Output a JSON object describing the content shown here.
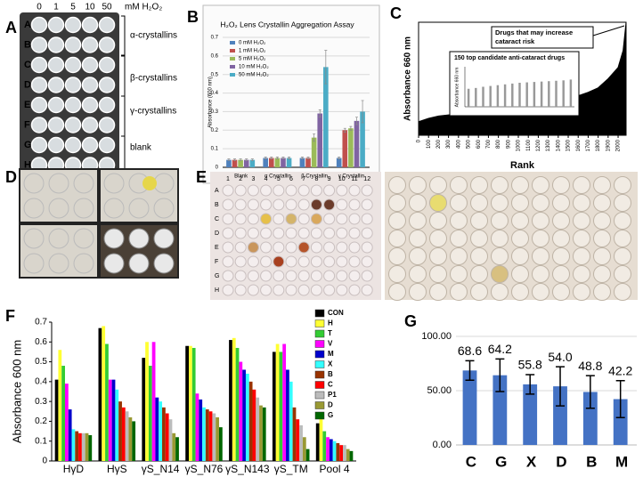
{
  "figure": {
    "panel_labels": [
      "A",
      "B",
      "C",
      "D",
      "E",
      "F",
      "G"
    ],
    "panel_a": {
      "columns": [
        "0",
        "1",
        "5",
        "10",
        "50"
      ],
      "unit": "mM H₂O₂",
      "rows": [
        "A",
        "B",
        "C",
        "D",
        "E",
        "F",
        "G",
        "H"
      ],
      "groups": [
        "α-crystallins",
        "β-crystallins",
        "γ-crystallins",
        "blank"
      ]
    },
    "panel_e": {
      "columns": [
        "1",
        "2",
        "3",
        "4",
        "5",
        "6",
        "7",
        "8",
        "9",
        "10",
        "11",
        "12"
      ],
      "rows": [
        "A",
        "B",
        "C",
        "D",
        "E",
        "F",
        "G",
        "H"
      ]
    }
  },
  "chart_data": [
    {
      "type": "bar",
      "title": "H₂O₂ Lens Crystallin Aggregation Assay",
      "ylabel": "Absorbance (600 nm)",
      "categories": [
        "Blank",
        "α Crystallin",
        "β Crystallin",
        "γ Crystallin"
      ],
      "series": [
        {
          "name": "0 mM H₂O₂",
          "color": "#4f81bd",
          "values": [
            0.04,
            0.05,
            0.05,
            0.05
          ],
          "errors": [
            0.005,
            0.005,
            0.005,
            0.005
          ]
        },
        {
          "name": "1 mM H₂O₂",
          "color": "#c0504d",
          "values": [
            0.04,
            0.05,
            0.05,
            0.2
          ],
          "errors": [
            0.005,
            0.005,
            0.005,
            0.01
          ]
        },
        {
          "name": "5 mM H₂O₂",
          "color": "#9bbb59",
          "values": [
            0.04,
            0.05,
            0.16,
            0.21
          ],
          "errors": [
            0.005,
            0.005,
            0.02,
            0.01
          ]
        },
        {
          "name": "10 mM H₂O₂",
          "color": "#8064a2",
          "values": [
            0.04,
            0.05,
            0.29,
            0.25
          ],
          "errors": [
            0.005,
            0.005,
            0.02,
            0.02
          ]
        },
        {
          "name": "50 mM H₂O₂",
          "color": "#4bacc6",
          "values": [
            0.04,
            0.05,
            0.54,
            0.3
          ],
          "errors": [
            0.005,
            0.005,
            0.09,
            0.06
          ]
        }
      ],
      "ylim": [
        0,
        0.7
      ],
      "yticks": [
        0,
        0.1,
        0.2,
        0.3,
        0.4,
        0.5,
        0.6,
        0.7
      ],
      "grid": true,
      "legend": "upper left"
    },
    {
      "type": "area",
      "ylabel": "Absorbance 660 nm",
      "xlabel": "Rank",
      "color": "#000000",
      "x": [
        0,
        100,
        200,
        300,
        400,
        500,
        600,
        700,
        800,
        900,
        1000,
        1100,
        1200,
        1300,
        1400,
        1500,
        1600,
        1700,
        1800,
        1900,
        2000,
        2050,
        2080
      ],
      "y": [
        0.12,
        0.15,
        0.17,
        0.18,
        0.19,
        0.2,
        0.21,
        0.22,
        0.23,
        0.24,
        0.25,
        0.26,
        0.27,
        0.28,
        0.3,
        0.32,
        0.35,
        0.38,
        0.42,
        0.5,
        0.6,
        0.75,
        1.0
      ],
      "xlim": [
        0,
        2080
      ],
      "ylim": [
        0,
        1
      ],
      "xticks": [
        0,
        100,
        200,
        300,
        400,
        500,
        600,
        700,
        800,
        900,
        1000,
        1100,
        1200,
        1300,
        1400,
        1500,
        1600,
        1700,
        1800,
        1900,
        2000
      ],
      "annotation": [
        "Drugs that may increase",
        "cataract risk"
      ],
      "inset": {
        "title": "150 top candidate anti-cataract drugs",
        "ylabel": "Absorbance 660 nm",
        "ylim": [
          0,
          1
        ],
        "values": [
          0.45,
          0.47,
          0.5,
          0.52,
          0.54,
          0.56,
          0.58,
          0.6,
          0.61,
          0.62,
          0.63,
          0.64,
          0.65,
          0.66,
          0.68
        ]
      }
    },
    {
      "type": "bar",
      "ylabel": "Absorbance 600 nm",
      "categories": [
        "HγD",
        "HγS",
        "γS_N14",
        "γS_N76",
        "γS_N143",
        "γS_TM",
        "Pool 4"
      ],
      "series": [
        {
          "name": "CON",
          "color": "#000000",
          "values": [
            0.41,
            0.67,
            0.52,
            0.58,
            0.61,
            0.55,
            0.19
          ]
        },
        {
          "name": "H",
          "color": "#ffff33",
          "values": [
            0.56,
            0.68,
            0.6,
            0.58,
            0.62,
            0.59,
            0.23
          ]
        },
        {
          "name": "T",
          "color": "#33cc33",
          "values": [
            0.48,
            0.59,
            0.48,
            0.57,
            0.57,
            0.55,
            0.15
          ]
        },
        {
          "name": "V",
          "color": "#ff00ff",
          "values": [
            0.39,
            0.41,
            0.6,
            0.34,
            0.5,
            0.59,
            0.12
          ]
        },
        {
          "name": "M",
          "color": "#0000cc",
          "values": [
            0.26,
            0.41,
            0.32,
            0.31,
            0.46,
            0.46,
            0.11
          ]
        },
        {
          "name": "X",
          "color": "#33ffff",
          "values": [
            0.16,
            0.36,
            0.3,
            0.27,
            0.44,
            0.4,
            0.1
          ]
        },
        {
          "name": "B",
          "color": "#993300",
          "values": [
            0.15,
            0.3,
            0.27,
            0.26,
            0.4,
            0.27,
            0.09
          ]
        },
        {
          "name": "C",
          "color": "#ff0000",
          "values": [
            0.14,
            0.27,
            0.24,
            0.25,
            0.36,
            0.21,
            0.08
          ]
        },
        {
          "name": "P1",
          "color": "#bbbbbb",
          "values": [
            0.14,
            0.25,
            0.21,
            0.24,
            0.32,
            0.18,
            0.08
          ]
        },
        {
          "name": "D",
          "color": "#999933",
          "values": [
            0.14,
            0.22,
            0.14,
            0.22,
            0.28,
            0.12,
            0.06
          ]
        },
        {
          "name": "G",
          "color": "#006600",
          "values": [
            0.13,
            0.2,
            0.12,
            0.17,
            0.27,
            0.06,
            0.05
          ]
        }
      ],
      "ylim": [
        0,
        0.7
      ],
      "yticks": [
        0,
        0.1,
        0.2,
        0.3,
        0.4,
        0.5,
        0.6,
        0.7
      ],
      "grid": false,
      "legend": "upper right"
    },
    {
      "type": "bar",
      "categories": [
        "C",
        "G",
        "X",
        "D",
        "B",
        "M"
      ],
      "values": [
        68.6,
        64.2,
        55.8,
        54.0,
        48.8,
        42.2
      ],
      "value_labels": [
        "68.6",
        "64.2",
        "55.8",
        "54.0",
        "48.8",
        "42.2"
      ],
      "errors": [
        9,
        15,
        9,
        18,
        15,
        17
      ],
      "color": "#4472c4",
      "ylim": [
        0,
        100
      ],
      "yticks": [
        {
          "value": 0,
          "label": "0.00"
        },
        {
          "value": 50,
          "label": "50.00"
        },
        {
          "value": 100,
          "label": "100.00"
        }
      ],
      "grid": true
    }
  ]
}
